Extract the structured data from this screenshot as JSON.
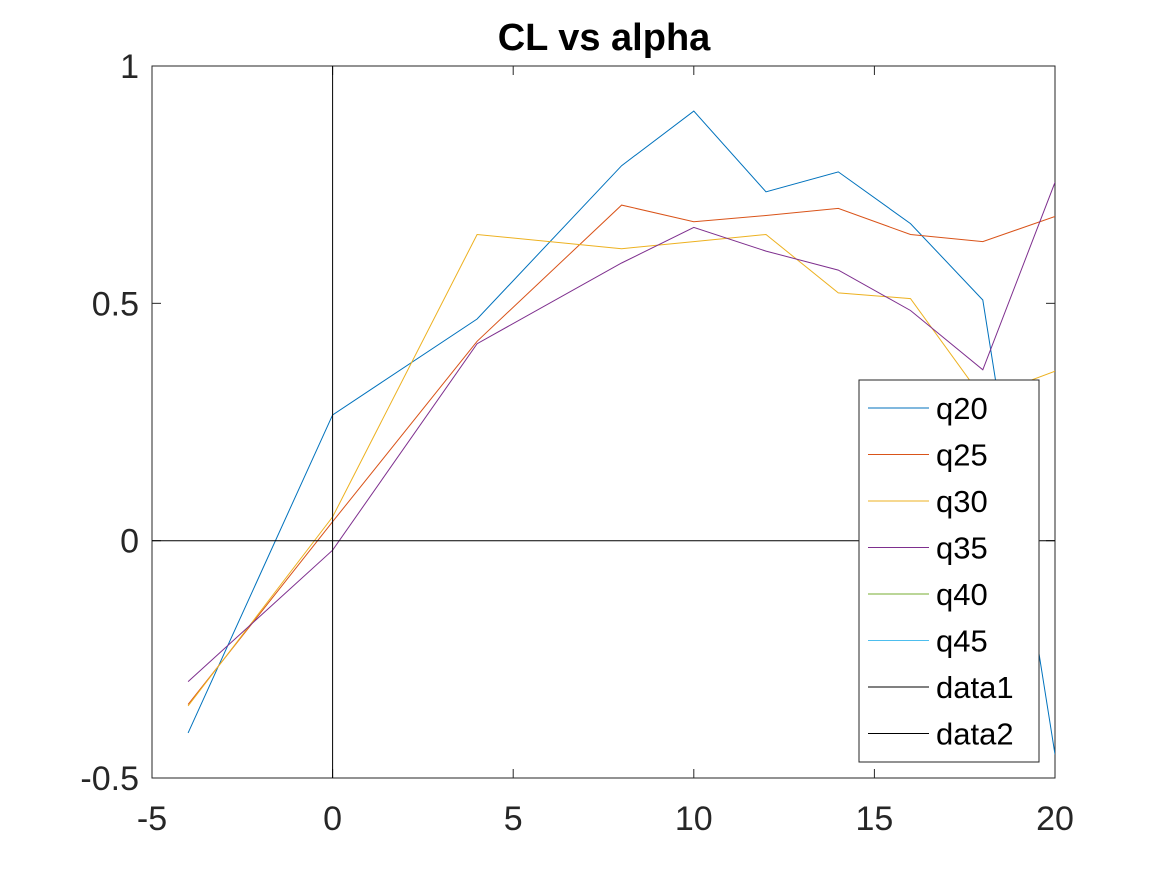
{
  "chart_data": {
    "type": "line",
    "title": "CL vs alpha",
    "xlabel": "",
    "ylabel": "",
    "xlim": [
      -5,
      20
    ],
    "ylim": [
      -0.5,
      1
    ],
    "xticks": [
      -5,
      0,
      5,
      10,
      15,
      20
    ],
    "yticks": [
      -0.5,
      0,
      0.5,
      1
    ],
    "xtick_labels": [
      "-5",
      "0",
      "5",
      "10",
      "15",
      "20"
    ],
    "ytick_labels": [
      "-0.5",
      "0",
      "0.5",
      "1"
    ],
    "grid": false,
    "legend": "bottom-right",
    "series": [
      {
        "name": "q20",
        "color": "#0072BD",
        "x": [
          -4,
          0,
          4,
          8,
          10,
          12,
          14,
          16,
          18,
          20
        ],
        "y": [
          -0.405,
          0.265,
          0.467,
          0.79,
          0.905,
          0.735,
          0.777,
          0.668,
          0.507,
          -0.45
        ]
      },
      {
        "name": "q25",
        "color": "#D95319",
        "x": [
          -4,
          0,
          4,
          8,
          10,
          12,
          14,
          16,
          18,
          20
        ],
        "y": [
          -0.345,
          0.04,
          0.42,
          0.707,
          0.672,
          0.685,
          0.7,
          0.645,
          0.63,
          0.683
        ]
      },
      {
        "name": "q30",
        "color": "#EDB120",
        "x": [
          -4,
          0,
          4,
          8,
          10,
          12,
          14,
          16,
          18,
          20
        ],
        "y": [
          -0.348,
          0.05,
          0.645,
          0.615,
          0.63,
          0.645,
          0.522,
          0.51,
          0.3,
          0.357
        ]
      },
      {
        "name": "q35",
        "color": "#7E2F8E",
        "x": [
          -4,
          0,
          4,
          8,
          10,
          12,
          14,
          16,
          18,
          20
        ],
        "y": [
          -0.297,
          -0.02,
          0.415,
          0.585,
          0.66,
          0.61,
          0.57,
          0.485,
          0.36,
          0.755
        ]
      },
      {
        "name": "q40",
        "color": "#77AC30",
        "x": [],
        "y": []
      },
      {
        "name": "q45",
        "color": "#4DBEEE",
        "x": [],
        "y": []
      },
      {
        "name": "data1",
        "color": "#000000",
        "x": [
          0,
          0
        ],
        "y": [
          -0.5,
          1
        ]
      },
      {
        "name": "data2",
        "color": "#000000",
        "x": [
          -5,
          20
        ],
        "y": [
          0,
          0
        ]
      }
    ]
  }
}
